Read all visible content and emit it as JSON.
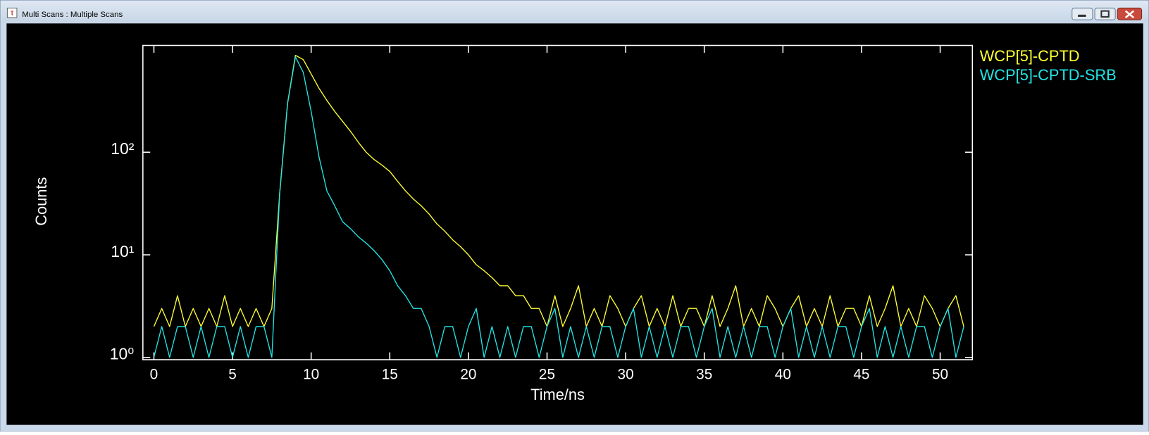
{
  "window": {
    "title": "Multi Scans : Multiple Scans"
  },
  "chart_data": {
    "type": "line",
    "x_label": "Time/ns",
    "y_label": "Counts",
    "log_y": true,
    "legend": "top-right",
    "xlim": [
      -0.7,
      52.05
    ],
    "xticks": [
      0,
      5,
      10,
      15,
      20,
      25,
      30,
      35,
      40,
      45,
      50
    ],
    "ylim": [
      0.95,
      1100
    ],
    "yticks": [
      {
        "value": 1,
        "label": "10⁰"
      },
      {
        "value": 10,
        "label": "10¹"
      },
      {
        "value": 100,
        "label": "10²"
      }
    ],
    "x": [
      0,
      0.5,
      1,
      1.5,
      2,
      2.5,
      3,
      3.5,
      4,
      4.5,
      5,
      5.5,
      6,
      6.5,
      7,
      7.5,
      8,
      8.5,
      9,
      9.5,
      10,
      10.5,
      11,
      11.5,
      12,
      12.5,
      13,
      13.5,
      14,
      14.5,
      15,
      15.5,
      16,
      16.5,
      17,
      17.5,
      18,
      18.5,
      19,
      19.5,
      20,
      20.5,
      21,
      21.5,
      22,
      22.5,
      23,
      23.5,
      24,
      24.5,
      25,
      25.5,
      26,
      26.5,
      27,
      27.5,
      28,
      28.5,
      29,
      29.5,
      30,
      30.5,
      31,
      31.5,
      32,
      32.5,
      33,
      33.5,
      34,
      34.5,
      35,
      35.5,
      36,
      36.5,
      37,
      37.5,
      38,
      38.5,
      39,
      39.5,
      40,
      40.5,
      41,
      41.5,
      42,
      42.5,
      43,
      43.5,
      44,
      44.5,
      45,
      45.5,
      46,
      46.5,
      47,
      47.5,
      48,
      48.5,
      49,
      49.5,
      50,
      50.5,
      51,
      51.5
    ],
    "series": [
      {
        "name": "WCP[5]-CPTD",
        "color": "#ffff33",
        "values": [
          2,
          3,
          2,
          4,
          2,
          3,
          2,
          3,
          2,
          4,
          2,
          3,
          2,
          3,
          2,
          3,
          40,
          300,
          880,
          800,
          580,
          420,
          320,
          250,
          200,
          160,
          125,
          100,
          85,
          75,
          65,
          52,
          42,
          35,
          30,
          25,
          20,
          17,
          14,
          12,
          10,
          8,
          7,
          6,
          5,
          5,
          4,
          4,
          3,
          3,
          2,
          4,
          2,
          3,
          5,
          2,
          3,
          2,
          4,
          3,
          2,
          3,
          4,
          2,
          3,
          2,
          4,
          2,
          3,
          3,
          2,
          4,
          2,
          3,
          5,
          2,
          3,
          2,
          4,
          3,
          2,
          3,
          4,
          2,
          3,
          2,
          4,
          2,
          3,
          3,
          2,
          4,
          2,
          3,
          5,
          2,
          3,
          2,
          4,
          3,
          2,
          3,
          4,
          2
        ]
      },
      {
        "name": "WCP[5]-CPTD-SRB",
        "color": "#22e5e5",
        "values": [
          1,
          2,
          1,
          2,
          2,
          1,
          2,
          1,
          2,
          2,
          1,
          2,
          1,
          2,
          2,
          1,
          40,
          300,
          850,
          600,
          250,
          90,
          42,
          30,
          21,
          18,
          15,
          13,
          11,
          9,
          7,
          5,
          4,
          3,
          3,
          2,
          1,
          2,
          2,
          1,
          2,
          3,
          1,
          2,
          1,
          2,
          1,
          2,
          2,
          1,
          2,
          3,
          1,
          2,
          1,
          2,
          1,
          2,
          2,
          1,
          2,
          3,
          1,
          2,
          1,
          2,
          1,
          2,
          2,
          1,
          2,
          3,
          1,
          2,
          1,
          2,
          1,
          2,
          2,
          1,
          2,
          3,
          1,
          2,
          1,
          2,
          1,
          2,
          2,
          1,
          2,
          3,
          1,
          2,
          1,
          2,
          1,
          2,
          2,
          1,
          2,
          3,
          1,
          2
        ]
      }
    ]
  }
}
